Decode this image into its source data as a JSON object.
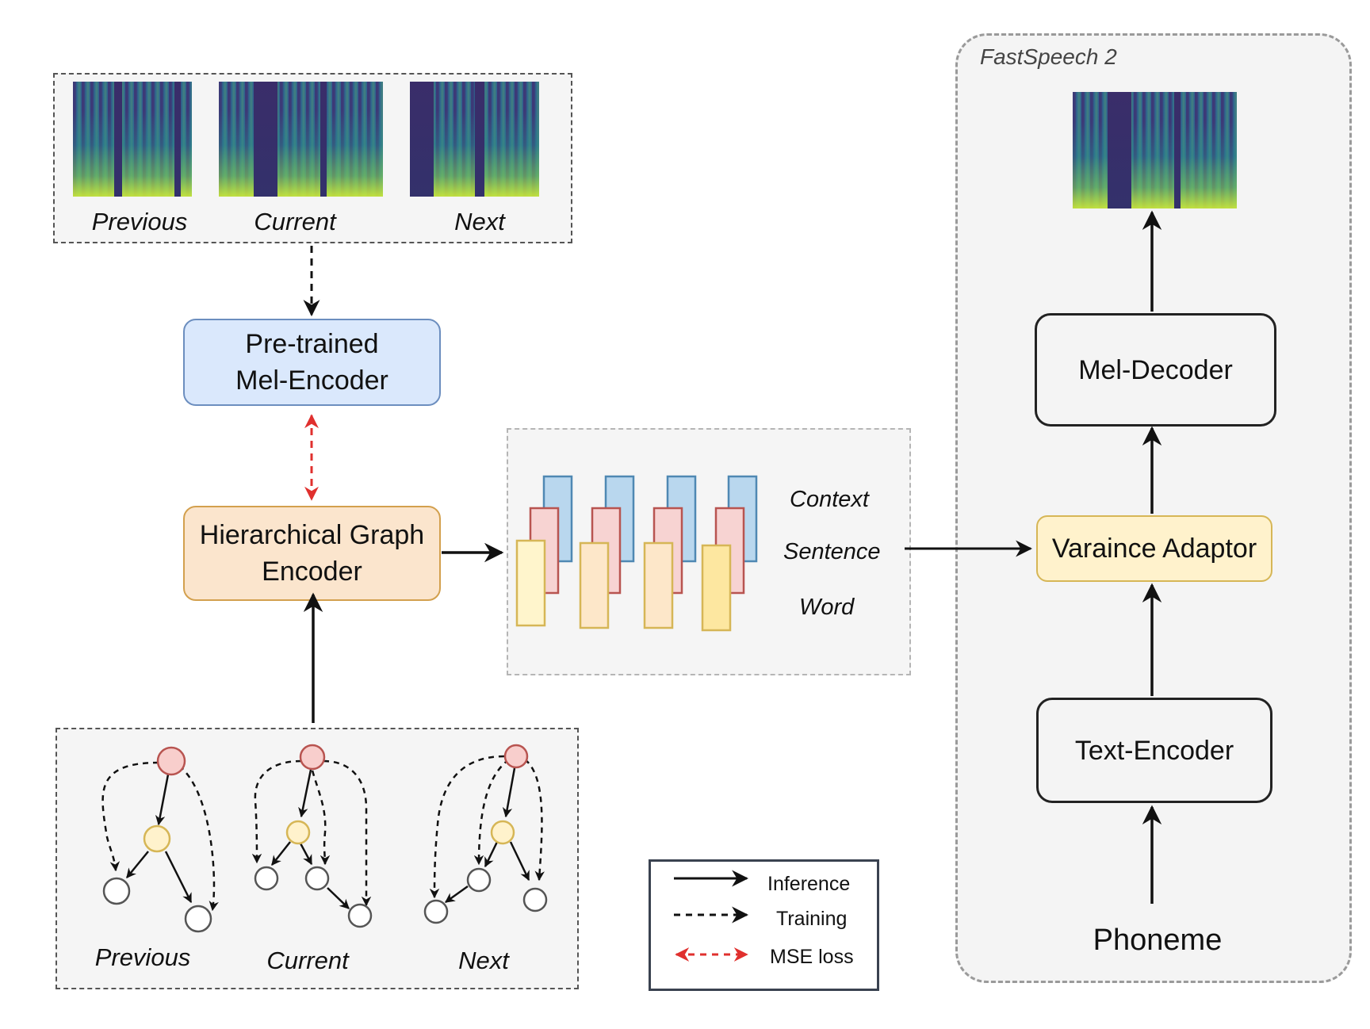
{
  "mel_group": {
    "labels": [
      "Previous",
      "Current",
      "Next"
    ]
  },
  "graph_group": {
    "labels": [
      "Previous",
      "Current",
      "Next"
    ]
  },
  "pretrained_encoder": {
    "line1": "Pre-trained",
    "line2": "Mel-Encoder"
  },
  "hier_encoder": {
    "line1": "Hierarchical Graph",
    "line2": "Encoder"
  },
  "embeddings": {
    "context": "Context",
    "sentence": "Sentence",
    "word": "Word"
  },
  "fastspeech": {
    "title": "FastSpeech 2",
    "mel_decoder": "Mel-Decoder",
    "variance_adaptor": "Varaince Adaptor",
    "text_encoder": "Text-Encoder",
    "phoneme": "Phoneme"
  },
  "legend": {
    "inference": "Inference",
    "training": "Training",
    "mse": "MSE loss"
  },
  "colors": {
    "mse_red": "#e0302e",
    "blue_fill": "#dae8fc",
    "blue_stroke": "#6c8ebf",
    "orange_fill": "#fbe5cd",
    "orange_stroke": "#d3a04e",
    "yellow_fill": "#fff2cc",
    "yellow_stroke": "#d6b656",
    "red_fill": "#f8cecc",
    "red_stroke": "#b85450"
  }
}
